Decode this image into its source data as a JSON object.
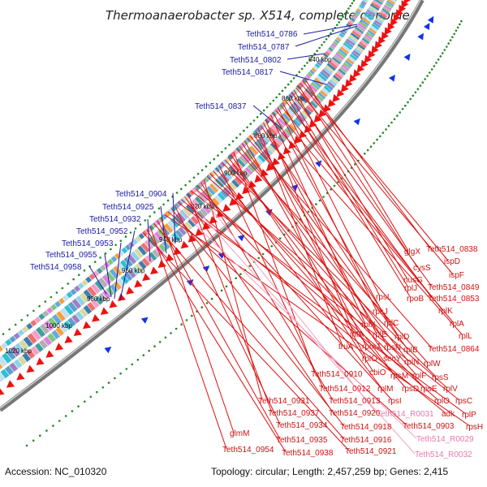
{
  "title": "Thermoanaerobacter sp. X514, complete genome",
  "footer": {
    "accession": "Accession: NC_010320",
    "summary": "Topology: circular; Length: 2,457,259 bp; Genes: 2,415"
  },
  "colors": {
    "forward_gene": "#ee1111",
    "label_blue": "#1a1aa0",
    "label_red": "#cc1111",
    "label_pink": "#e87aa8",
    "gc_dots": "#228822",
    "backbone": "#777777"
  },
  "kbp_labels": [
    "840 kbp",
    "860 kbp",
    "880 kbp",
    "900 kbp",
    "920 kbp",
    "940 kbp",
    "960 kbp",
    "980 kbp",
    "1000 kbp",
    "1020 kbp"
  ],
  "blue_labels": [
    "Teth514_0786",
    "Teth514_0787",
    "Teth514_0802",
    "Teth514_0817",
    "Teth514_0837",
    "Teth514_0904",
    "Teth514_0925",
    "Teth514_0932",
    "Teth514_0952",
    "Teth514_0953",
    "Teth514_0955",
    "Teth514_0958"
  ],
  "red_labels": [
    "glgX",
    "Teth514_0838",
    "ispD",
    "cysS",
    "ispF",
    "nusG",
    "Teth514_0849",
    "rplJ",
    "rpoB",
    "Teth514_0853",
    "rpsL",
    "rplK",
    "rpsJ",
    "rplA",
    "rplC",
    "rplX",
    "rplL",
    "infA",
    "rplE",
    "rplD",
    "truA",
    "rpmJ",
    "rpsN",
    "rplB",
    "Teth514_0864",
    "rplO",
    "secY",
    "rplN",
    "rplW",
    "Teth514_0910",
    "cbiO",
    "rpsM",
    "rplF",
    "rpsS",
    "Teth514_0912",
    "rplM",
    "rpsD",
    "rpsE",
    "rplV",
    "Teth514_0931",
    "Teth514_0913",
    "rpsI",
    "rplO",
    "rpsC",
    "Teth514_0937",
    "Teth514_0920",
    "adk",
    "rplP",
    "Teth514_0934",
    "Teth514_0918",
    "Teth514_0903",
    "rpsH",
    "glmM",
    "Teth514_0935",
    "Teth514_0916",
    "Teth514_0954",
    "Teth514_0938",
    "Teth514_0921"
  ],
  "pink_labels": [
    "Teth514_R0031",
    "Teth514_R0029",
    "Teth514_R0032"
  ]
}
